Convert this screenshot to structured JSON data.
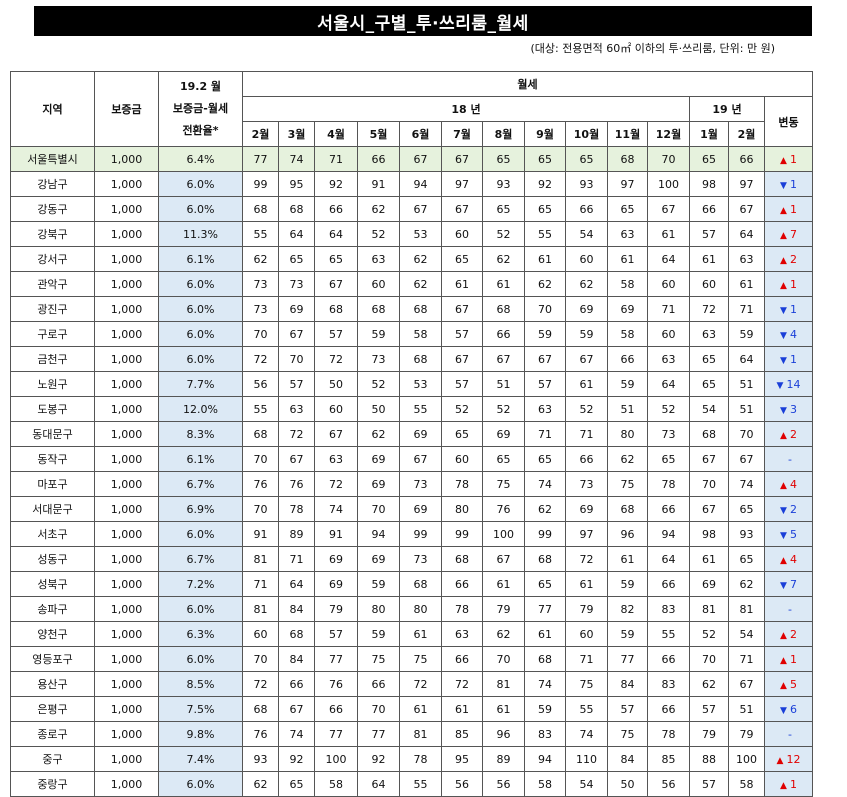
{
  "title": "서울시_구별_투·쓰리룸_월세",
  "subtitle": "(대상: 전용면적 60㎡ 이하의 투·쓰리룸, 단위: 만 원)",
  "headers": {
    "region": "지역",
    "deposit": "보증금",
    "rate_line1": "19.2 월",
    "rate_line2": "보증금-월세",
    "rate_line3": "전환율*",
    "monthly_rent": "월세",
    "year18": "18 년",
    "year19": "19 년",
    "change": "변동",
    "months": [
      "2월",
      "3월",
      "4월",
      "5월",
      "6월",
      "7월",
      "8월",
      "9월",
      "10월",
      "11월",
      "12월",
      "1월",
      "2월"
    ]
  },
  "rows": [
    {
      "name": "서울특별시",
      "deposit": "1,000",
      "rate": "6.4%",
      "values": [
        "77",
        "74",
        "71",
        "66",
        "67",
        "67",
        "65",
        "65",
        "65",
        "68",
        "70",
        "65",
        "66"
      ],
      "dir": "up",
      "symbol": "▲",
      "change": "1"
    },
    {
      "name": "강남구",
      "deposit": "1,000",
      "rate": "6.0%",
      "values": [
        "99",
        "95",
        "92",
        "91",
        "94",
        "97",
        "93",
        "92",
        "93",
        "97",
        "100",
        "98",
        "97"
      ],
      "dir": "down",
      "symbol": "▼",
      "change": "1"
    },
    {
      "name": "강동구",
      "deposit": "1,000",
      "rate": "6.0%",
      "values": [
        "68",
        "68",
        "66",
        "62",
        "67",
        "67",
        "65",
        "65",
        "66",
        "65",
        "67",
        "66",
        "67"
      ],
      "dir": "up",
      "symbol": "▲",
      "change": "1"
    },
    {
      "name": "강북구",
      "deposit": "1,000",
      "rate": "11.3%",
      "values": [
        "55",
        "64",
        "64",
        "52",
        "53",
        "60",
        "52",
        "55",
        "54",
        "63",
        "61",
        "57",
        "64"
      ],
      "dir": "up",
      "symbol": "▲",
      "change": "7"
    },
    {
      "name": "강서구",
      "deposit": "1,000",
      "rate": "6.1%",
      "values": [
        "62",
        "65",
        "65",
        "63",
        "62",
        "65",
        "62",
        "61",
        "60",
        "61",
        "64",
        "61",
        "63"
      ],
      "dir": "up",
      "symbol": "▲",
      "change": "2"
    },
    {
      "name": "관악구",
      "deposit": "1,000",
      "rate": "6.0%",
      "values": [
        "73",
        "73",
        "67",
        "60",
        "62",
        "61",
        "61",
        "62",
        "62",
        "58",
        "60",
        "60",
        "61"
      ],
      "dir": "up",
      "symbol": "▲",
      "change": "1"
    },
    {
      "name": "광진구",
      "deposit": "1,000",
      "rate": "6.0%",
      "values": [
        "73",
        "69",
        "68",
        "68",
        "68",
        "67",
        "68",
        "70",
        "69",
        "69",
        "71",
        "72",
        "71"
      ],
      "dir": "down",
      "symbol": "▼",
      "change": "1"
    },
    {
      "name": "구로구",
      "deposit": "1,000",
      "rate": "6.0%",
      "values": [
        "70",
        "67",
        "57",
        "59",
        "58",
        "57",
        "66",
        "59",
        "59",
        "58",
        "60",
        "63",
        "59"
      ],
      "dir": "down",
      "symbol": "▼",
      "change": "4"
    },
    {
      "name": "금천구",
      "deposit": "1,000",
      "rate": "6.0%",
      "values": [
        "72",
        "70",
        "72",
        "73",
        "68",
        "67",
        "67",
        "67",
        "67",
        "66",
        "63",
        "65",
        "64"
      ],
      "dir": "down",
      "symbol": "▼",
      "change": "1"
    },
    {
      "name": "노원구",
      "deposit": "1,000",
      "rate": "7.7%",
      "values": [
        "56",
        "57",
        "50",
        "52",
        "53",
        "57",
        "51",
        "57",
        "61",
        "59",
        "64",
        "65",
        "51"
      ],
      "dir": "down",
      "symbol": "▼",
      "change": "14"
    },
    {
      "name": "도봉구",
      "deposit": "1,000",
      "rate": "12.0%",
      "values": [
        "55",
        "63",
        "60",
        "50",
        "55",
        "52",
        "52",
        "63",
        "52",
        "51",
        "52",
        "54",
        "51"
      ],
      "dir": "down",
      "symbol": "▼",
      "change": "3"
    },
    {
      "name": "동대문구",
      "deposit": "1,000",
      "rate": "8.3%",
      "values": [
        "68",
        "72",
        "67",
        "62",
        "69",
        "65",
        "69",
        "71",
        "71",
        "80",
        "73",
        "68",
        "70"
      ],
      "dir": "up",
      "symbol": "▲",
      "change": "2"
    },
    {
      "name": "동작구",
      "deposit": "1,000",
      "rate": "6.1%",
      "values": [
        "70",
        "67",
        "63",
        "69",
        "67",
        "60",
        "65",
        "65",
        "66",
        "62",
        "65",
        "67",
        "67"
      ],
      "dir": "flat",
      "symbol": "",
      "change": "-"
    },
    {
      "name": "마포구",
      "deposit": "1,000",
      "rate": "6.7%",
      "values": [
        "76",
        "76",
        "72",
        "69",
        "73",
        "78",
        "75",
        "74",
        "73",
        "75",
        "78",
        "70",
        "74"
      ],
      "dir": "up",
      "symbol": "▲",
      "change": "4"
    },
    {
      "name": "서대문구",
      "deposit": "1,000",
      "rate": "6.9%",
      "values": [
        "70",
        "78",
        "74",
        "70",
        "69",
        "80",
        "76",
        "62",
        "69",
        "68",
        "66",
        "67",
        "65"
      ],
      "dir": "down",
      "symbol": "▼",
      "change": "2"
    },
    {
      "name": "서초구",
      "deposit": "1,000",
      "rate": "6.0%",
      "values": [
        "91",
        "89",
        "91",
        "94",
        "99",
        "99",
        "100",
        "99",
        "97",
        "96",
        "94",
        "98",
        "93"
      ],
      "dir": "down",
      "symbol": "▼",
      "change": "5"
    },
    {
      "name": "성동구",
      "deposit": "1,000",
      "rate": "6.7%",
      "values": [
        "81",
        "71",
        "69",
        "69",
        "73",
        "68",
        "67",
        "68",
        "72",
        "61",
        "64",
        "61",
        "65"
      ],
      "dir": "up",
      "symbol": "▲",
      "change": "4"
    },
    {
      "name": "성북구",
      "deposit": "1,000",
      "rate": "7.2%",
      "values": [
        "71",
        "64",
        "69",
        "59",
        "68",
        "66",
        "61",
        "65",
        "61",
        "59",
        "66",
        "69",
        "62"
      ],
      "dir": "down",
      "symbol": "▼",
      "change": "7"
    },
    {
      "name": "송파구",
      "deposit": "1,000",
      "rate": "6.0%",
      "values": [
        "81",
        "84",
        "79",
        "80",
        "80",
        "78",
        "79",
        "77",
        "79",
        "82",
        "83",
        "81",
        "81"
      ],
      "dir": "flat",
      "symbol": "",
      "change": "-"
    },
    {
      "name": "양천구",
      "deposit": "1,000",
      "rate": "6.3%",
      "values": [
        "60",
        "68",
        "57",
        "59",
        "61",
        "63",
        "62",
        "61",
        "60",
        "59",
        "55",
        "52",
        "54"
      ],
      "dir": "up",
      "symbol": "▲",
      "change": "2"
    },
    {
      "name": "영등포구",
      "deposit": "1,000",
      "rate": "6.0%",
      "values": [
        "70",
        "84",
        "77",
        "75",
        "75",
        "66",
        "70",
        "68",
        "71",
        "77",
        "66",
        "70",
        "71"
      ],
      "dir": "up",
      "symbol": "▲",
      "change": "1"
    },
    {
      "name": "용산구",
      "deposit": "1,000",
      "rate": "8.5%",
      "values": [
        "72",
        "66",
        "76",
        "66",
        "72",
        "72",
        "81",
        "74",
        "75",
        "84",
        "83",
        "62",
        "67"
      ],
      "dir": "up",
      "symbol": "▲",
      "change": "5"
    },
    {
      "name": "은평구",
      "deposit": "1,000",
      "rate": "7.5%",
      "values": [
        "68",
        "67",
        "66",
        "70",
        "61",
        "61",
        "61",
        "59",
        "55",
        "57",
        "66",
        "57",
        "51"
      ],
      "dir": "down",
      "symbol": "▼",
      "change": "6"
    },
    {
      "name": "종로구",
      "deposit": "1,000",
      "rate": "9.8%",
      "values": [
        "76",
        "74",
        "77",
        "77",
        "81",
        "85",
        "96",
        "83",
        "74",
        "75",
        "78",
        "79",
        "79"
      ],
      "dir": "flat",
      "symbol": "",
      "change": "-"
    },
    {
      "name": "중구",
      "deposit": "1,000",
      "rate": "7.4%",
      "values": [
        "93",
        "92",
        "100",
        "92",
        "78",
        "95",
        "89",
        "94",
        "110",
        "84",
        "85",
        "88",
        "100"
      ],
      "dir": "up",
      "symbol": "▲",
      "change": "12"
    },
    {
      "name": "중랑구",
      "deposit": "1,000",
      "rate": "6.0%",
      "values": [
        "62",
        "65",
        "58",
        "64",
        "55",
        "56",
        "56",
        "58",
        "54",
        "50",
        "56",
        "57",
        "58"
      ],
      "dir": "up",
      "symbol": "▲",
      "change": "1"
    }
  ],
  "colors": {
    "up": "#e00000",
    "down": "#1a3fd8",
    "rate_bg": "#dce9f5",
    "seoul_bg": "#e6f2dd"
  }
}
